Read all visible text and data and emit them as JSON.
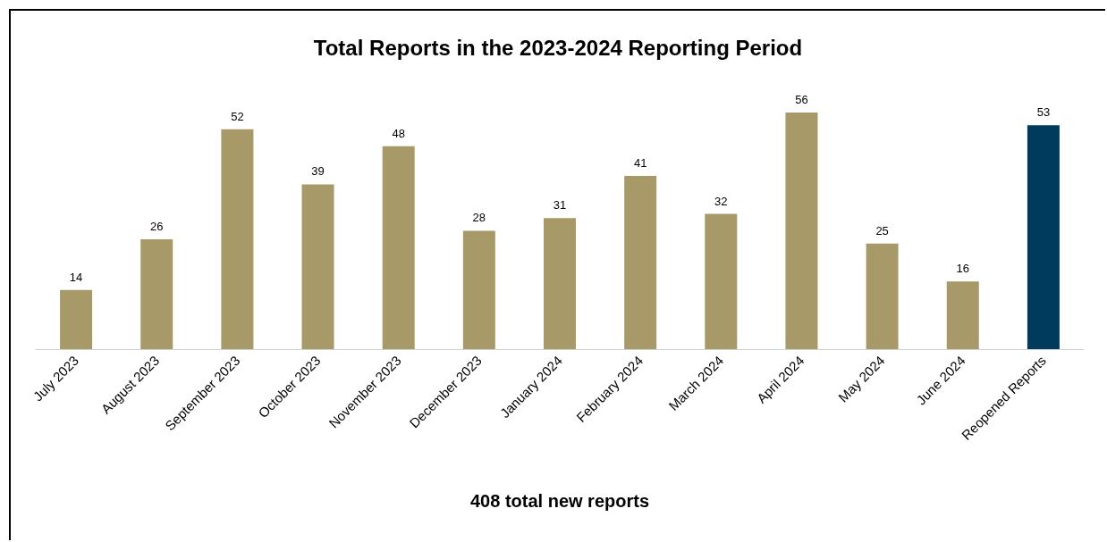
{
  "chart_data": {
    "type": "bar",
    "title": "Total Reports in the 2023-2024 Reporting Period",
    "xlabel": "408 total new reports",
    "categories": [
      "July 2023",
      "August 2023",
      "September 2023",
      "October 2023",
      "November 2023",
      "December 2023",
      "January 2024",
      "February 2024",
      "March 2024",
      "April 2024",
      "May 2024",
      "June 2024",
      "Reopened Reports"
    ],
    "values": [
      14,
      26,
      52,
      39,
      48,
      28,
      31,
      41,
      32,
      56,
      25,
      16,
      53
    ],
    "colors": [
      "#a89968",
      "#a89968",
      "#a89968",
      "#a89968",
      "#a89968",
      "#a89968",
      "#a89968",
      "#a89968",
      "#a89968",
      "#a89968",
      "#a89968",
      "#a89968",
      "#003a5c"
    ],
    "data_labels": true,
    "grid": false
  }
}
